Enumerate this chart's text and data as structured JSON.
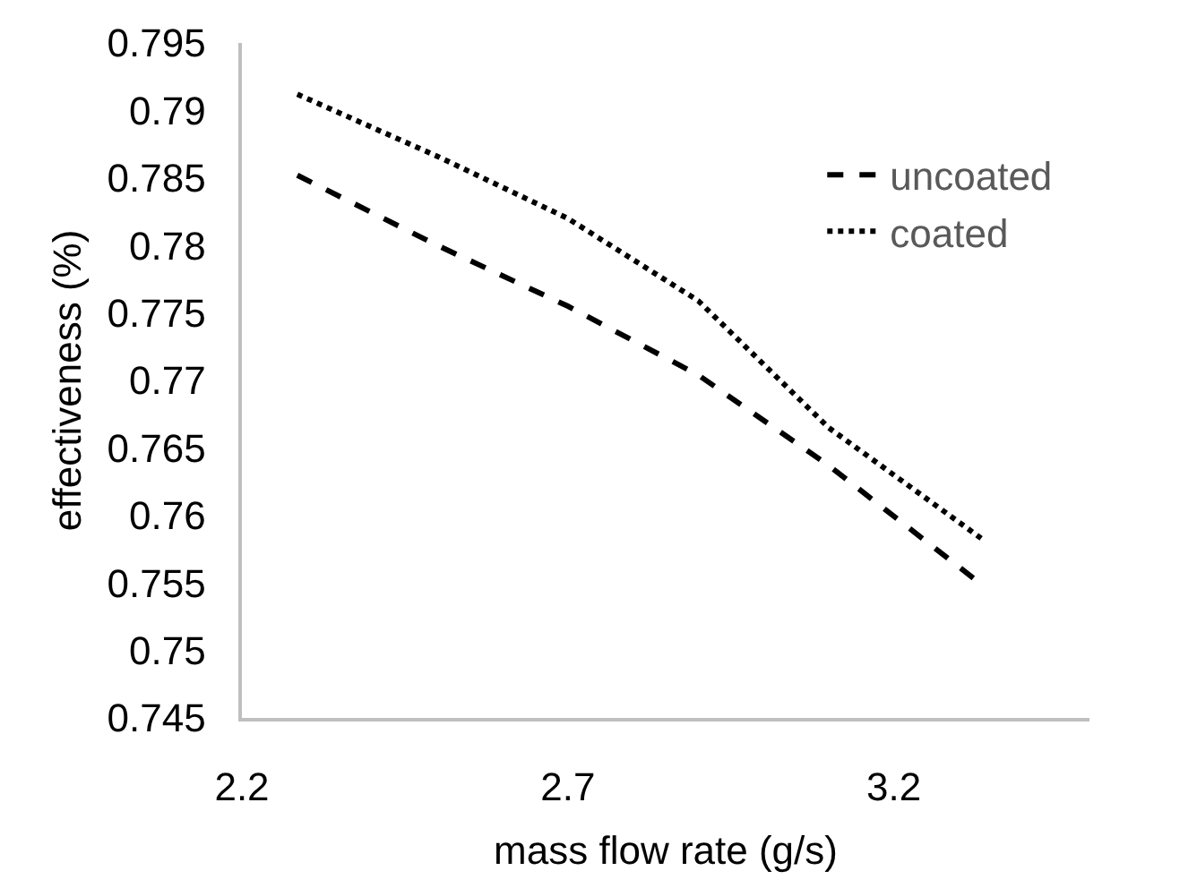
{
  "chart_data": {
    "type": "line",
    "xlabel": "mass flow rate (g/s)",
    "ylabel": "effectiveness (%)",
    "x": [
      2.285,
      2.5,
      2.7,
      2.9,
      3.1,
      3.334
    ],
    "xlim": [
      2.2,
      3.5
    ],
    "xticks": [
      2.2,
      2.7,
      3.2
    ],
    "ylim": [
      0.745,
      0.795
    ],
    "yticks": [
      0.745,
      0.75,
      0.755,
      0.76,
      0.765,
      0.77,
      0.775,
      0.78,
      0.785,
      0.79,
      0.795
    ],
    "grid": false,
    "legend": "top right",
    "marker": "none",
    "series": [
      {
        "name": "uncoated",
        "color": "#000000",
        "line_style": "dashed",
        "values": [
          0.7852,
          0.78,
          0.7755,
          0.7704,
          0.7637,
          0.7549
        ]
      },
      {
        "name": "coated",
        "color": "#000000",
        "line_style": "dotted",
        "values": [
          0.7912,
          0.7866,
          0.782,
          0.7759,
          0.7665,
          0.7583
        ]
      }
    ]
  }
}
